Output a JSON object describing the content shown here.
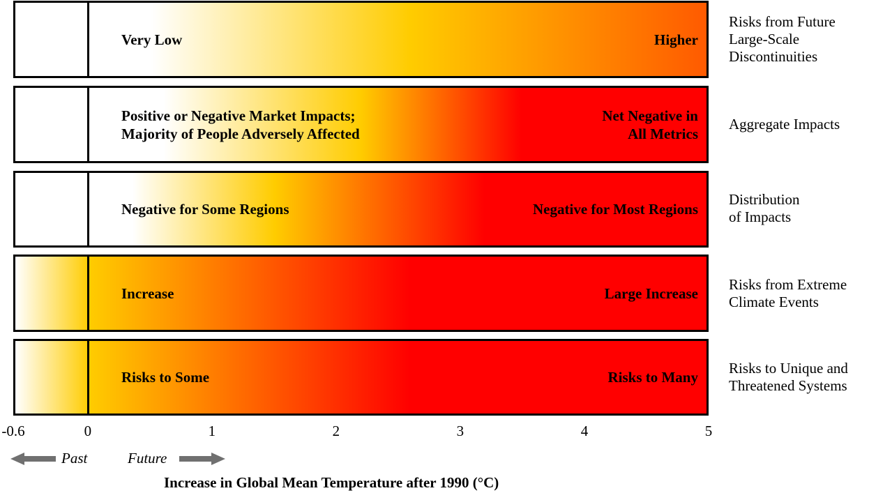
{
  "chart_data": {
    "type": "heatmap",
    "xlim": [
      -0.6,
      5
    ],
    "xticks": [
      "-0.6",
      "0",
      "1",
      "2",
      "3",
      "4",
      "5"
    ],
    "xlabel": "Increase in Global Mean Temperature after 1990 (°C)",
    "direction_labels": {
      "past": "Past",
      "future": "Future"
    },
    "rows": [
      {
        "category": [
          "Risks from Future",
          "Large-Scale",
          "Discontinuities"
        ],
        "low_label": [
          "Very Low"
        ],
        "high_label": [
          "Higher"
        ],
        "gradient": [
          [
            0.5,
            "#ffffff"
          ],
          [
            2.6,
            "#ffcc00"
          ],
          [
            5.0,
            "#ff5a00"
          ]
        ]
      },
      {
        "category": [
          "Aggregate Impacts"
        ],
        "low_label": [
          "Positive or Negative Market Impacts;",
          "Majority of People Adversely Affected"
        ],
        "high_label": [
          "Net Negative in",
          "All Metrics"
        ],
        "gradient": [
          [
            0.6,
            "#ffffff"
          ],
          [
            2.2,
            "#ffcc00"
          ],
          [
            3.5,
            "#ff0000"
          ],
          [
            5.0,
            "#ff0000"
          ]
        ]
      },
      {
        "category": [
          "Distribution",
          "of Impacts"
        ],
        "low_label": [
          "Negative for Some Regions"
        ],
        "high_label": [
          "Negative for Most Regions"
        ],
        "gradient": [
          [
            0.35,
            "#ffffff"
          ],
          [
            1.5,
            "#ffcc00"
          ],
          [
            3.2,
            "#ff0000"
          ],
          [
            5.0,
            "#ff0000"
          ]
        ]
      },
      {
        "category": [
          "Risks from Extreme",
          "Climate Events"
        ],
        "low_label": [
          "Increase"
        ],
        "high_label": [
          "Large Increase"
        ],
        "gradient": [
          [
            -0.6,
            "#ffffff"
          ],
          [
            0.0,
            "#ffcc00"
          ],
          [
            2.6,
            "#ff0000"
          ],
          [
            5.0,
            "#ff0000"
          ]
        ]
      },
      {
        "category": [
          "Risks to Unique and",
          "Threatened Systems"
        ],
        "low_label": [
          "Risks to Some"
        ],
        "high_label": [
          "Risks to Many"
        ],
        "gradient": [
          [
            -0.6,
            "#ffffff"
          ],
          [
            0.0,
            "#ffcc00"
          ],
          [
            2.6,
            "#ff0000"
          ],
          [
            5.0,
            "#ff0000"
          ]
        ]
      }
    ]
  }
}
